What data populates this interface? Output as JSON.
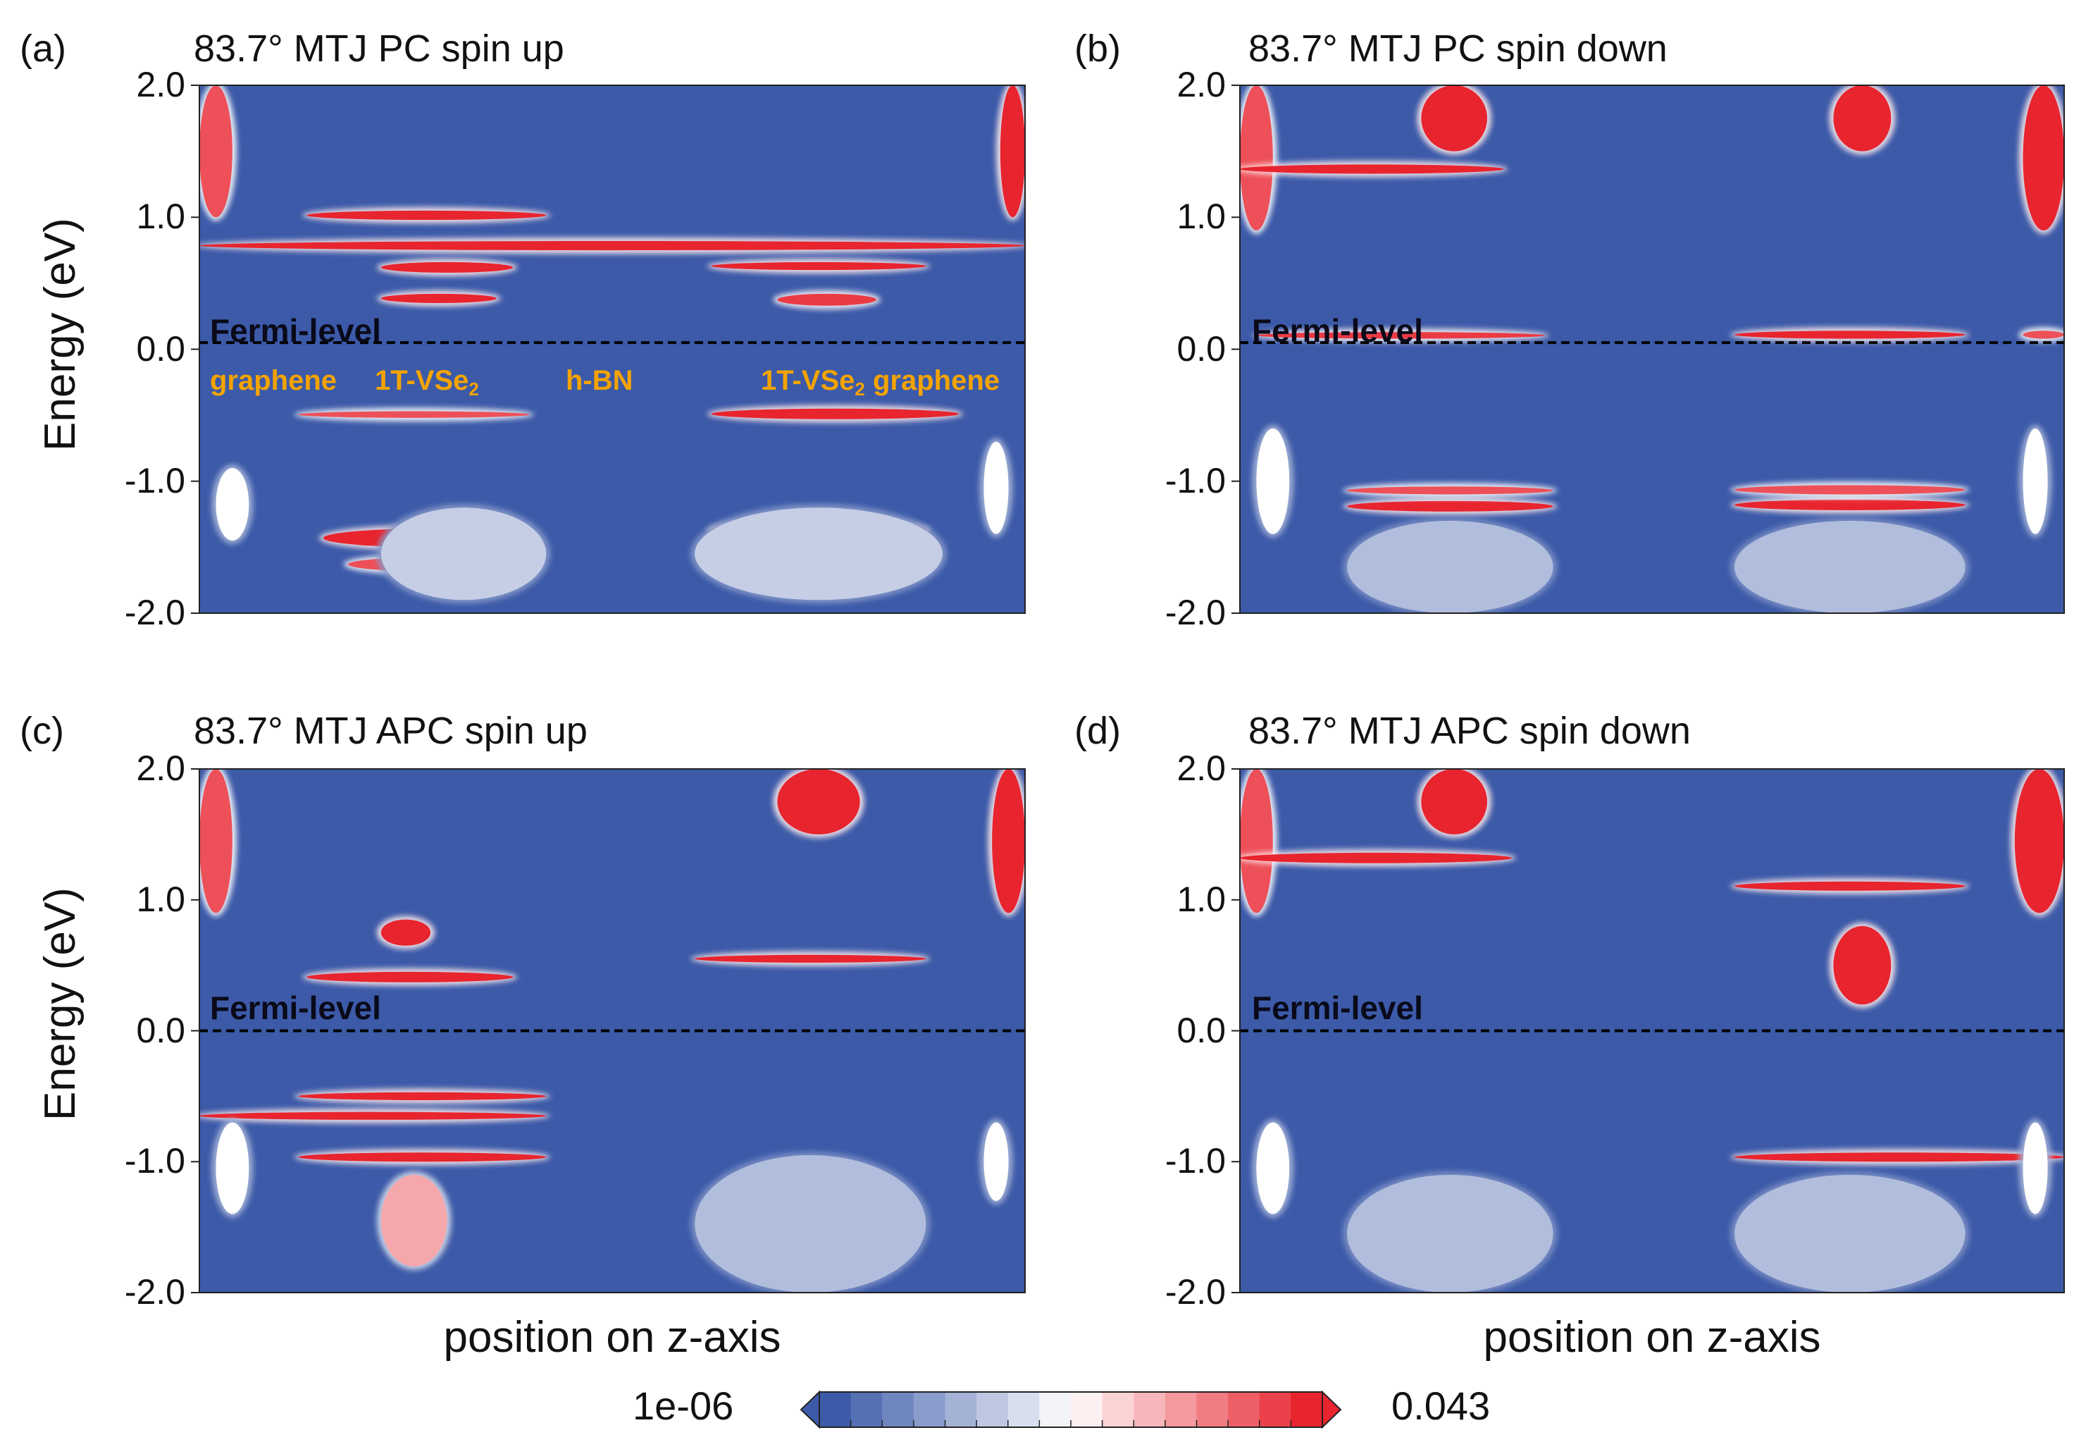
{
  "colors": {
    "background_low": "#3c5aa8",
    "mid": "#ffffff",
    "high": "#e8242e",
    "fermi_line": "#000000",
    "layer_label": "#f5a300"
  },
  "chart_data": [
    {
      "type": "heatmap",
      "panel_letter": "(a)",
      "title": "83.7° MTJ PC spin up",
      "ylabel": "Energy (eV)",
      "xlabel": "",
      "ylim": [
        -2.0,
        2.0
      ],
      "yticks": [
        "2.0",
        "1.0",
        "0.0",
        "-1.0",
        "-2.0"
      ],
      "fermi_level": {
        "label": "Fermi-level",
        "energy": 0.05
      },
      "layer_labels": [
        {
          "text": "graphene",
          "sub": "",
          "tail": "",
          "z": 0.09
        },
        {
          "text": "1T-VSe",
          "sub": "2",
          "tail": "",
          "z": 0.29
        },
        {
          "text": "h-BN",
          "sub": "",
          "tail": "",
          "z": 0.5
        },
        {
          "text": "1T-VSe",
          "sub": "2",
          "tail": " graphene",
          "z": 0.78
        }
      ],
      "features": [
        {
          "z0": 0.0,
          "z1": 0.04,
          "e0": 1.0,
          "e1": 2.0,
          "v": 0.9
        },
        {
          "z0": 0.97,
          "z1": 1.0,
          "e0": 1.0,
          "e1": 2.0,
          "v": 1.0
        },
        {
          "z0": 0.13,
          "z1": 0.42,
          "e0": 0.98,
          "e1": 1.05,
          "v": 1.0
        },
        {
          "z0": 0.0,
          "z1": 1.0,
          "e0": 0.75,
          "e1": 0.82,
          "v": 1.0
        },
        {
          "z0": 0.22,
          "z1": 0.38,
          "e0": 0.58,
          "e1": 0.66,
          "v": 1.0
        },
        {
          "z0": 0.62,
          "z1": 0.88,
          "e0": 0.6,
          "e1": 0.66,
          "v": 1.0
        },
        {
          "z0": 0.22,
          "z1": 0.36,
          "e0": 0.35,
          "e1": 0.42,
          "v": 1.0
        },
        {
          "z0": 0.7,
          "z1": 0.82,
          "e0": 0.33,
          "e1": 0.42,
          "v": 0.95
        },
        {
          "z0": 0.12,
          "z1": 0.4,
          "e0": -0.52,
          "e1": -0.47,
          "v": 0.9
        },
        {
          "z0": 0.62,
          "z1": 0.92,
          "e0": -0.53,
          "e1": -0.45,
          "v": 1.0
        },
        {
          "z0": 0.15,
          "z1": 0.4,
          "e0": -1.5,
          "e1": -1.36,
          "v": 1.0
        },
        {
          "z0": 0.62,
          "z1": 0.88,
          "e0": -1.45,
          "e1": -1.3,
          "v": 1.0
        },
        {
          "z0": 0.18,
          "z1": 0.35,
          "e0": -1.68,
          "e1": -1.58,
          "v": 0.9
        },
        {
          "z0": 0.64,
          "z1": 0.86,
          "e0": -1.7,
          "e1": -1.58,
          "v": 0.9
        },
        {
          "z0": 0.02,
          "z1": 0.06,
          "e0": -1.45,
          "e1": -0.9,
          "v": 0.5
        },
        {
          "z0": 0.95,
          "z1": 0.98,
          "e0": -1.4,
          "e1": -0.7,
          "v": 0.5
        },
        {
          "z0": 0.22,
          "z1": 0.42,
          "e0": -1.9,
          "e1": -1.2,
          "v": 0.35
        },
        {
          "z0": 0.6,
          "z1": 0.9,
          "e0": -1.9,
          "e1": -1.2,
          "v": 0.35
        }
      ]
    },
    {
      "type": "heatmap",
      "panel_letter": "(b)",
      "title": "83.7° MTJ PC spin down",
      "ylabel": "",
      "xlabel": "",
      "ylim": [
        -2.0,
        2.0
      ],
      "yticks": [
        "2.0",
        "1.0",
        "0.0",
        "-1.0",
        "-2.0"
      ],
      "fermi_level": {
        "label": "Fermi-level",
        "energy": 0.05
      },
      "layer_labels": [],
      "features": [
        {
          "z0": 0.0,
          "z1": 0.04,
          "e0": 0.9,
          "e1": 2.0,
          "v": 0.9
        },
        {
          "z0": 0.95,
          "z1": 1.0,
          "e0": 0.9,
          "e1": 2.0,
          "v": 1.0
        },
        {
          "z0": 0.22,
          "z1": 0.3,
          "e0": 1.5,
          "e1": 2.0,
          "v": 1.0
        },
        {
          "z0": 0.72,
          "z1": 0.79,
          "e0": 1.5,
          "e1": 2.0,
          "v": 1.0
        },
        {
          "z0": 0.0,
          "z1": 0.32,
          "e0": 1.33,
          "e1": 1.4,
          "v": 1.0
        },
        {
          "z0": 0.02,
          "z1": 0.37,
          "e0": 0.08,
          "e1": 0.13,
          "v": 0.95
        },
        {
          "z0": 0.6,
          "z1": 0.88,
          "e0": 0.08,
          "e1": 0.14,
          "v": 1.0
        },
        {
          "z0": 0.95,
          "z1": 1.0,
          "e0": 0.08,
          "e1": 0.14,
          "v": 0.9
        },
        {
          "z0": 0.13,
          "z1": 0.38,
          "e0": -1.23,
          "e1": -1.15,
          "v": 1.0
        },
        {
          "z0": 0.6,
          "z1": 0.88,
          "e0": -1.22,
          "e1": -1.14,
          "v": 1.0
        },
        {
          "z0": 0.13,
          "z1": 0.38,
          "e0": -1.1,
          "e1": -1.04,
          "v": 0.9
        },
        {
          "z0": 0.6,
          "z1": 0.88,
          "e0": -1.1,
          "e1": -1.03,
          "v": 0.9
        },
        {
          "z0": 0.02,
          "z1": 0.06,
          "e0": -1.4,
          "e1": -0.6,
          "v": 0.5
        },
        {
          "z0": 0.95,
          "z1": 0.98,
          "e0": -1.4,
          "e1": -0.6,
          "v": 0.5
        },
        {
          "z0": 0.13,
          "z1": 0.38,
          "e0": -2.0,
          "e1": -1.3,
          "v": 0.3
        },
        {
          "z0": 0.6,
          "z1": 0.88,
          "e0": -2.0,
          "e1": -1.3,
          "v": 0.3
        }
      ]
    },
    {
      "type": "heatmap",
      "panel_letter": "(c)",
      "title": "83.7° MTJ APC spin up",
      "ylabel": "Energy (eV)",
      "xlabel": "position on z-axis",
      "ylim": [
        -2.0,
        2.0
      ],
      "yticks": [
        "2.0",
        "1.0",
        "0.0",
        "-1.0",
        "-2.0"
      ],
      "fermi_level": {
        "label": "Fermi-level",
        "energy": 0.0
      },
      "layer_labels": [],
      "features": [
        {
          "z0": 0.0,
          "z1": 0.04,
          "e0": 0.9,
          "e1": 2.0,
          "v": 0.9
        },
        {
          "z0": 0.96,
          "z1": 1.0,
          "e0": 0.9,
          "e1": 2.0,
          "v": 1.0
        },
        {
          "z0": 0.7,
          "z1": 0.8,
          "e0": 1.5,
          "e1": 2.0,
          "v": 1.0
        },
        {
          "z0": 0.22,
          "z1": 0.28,
          "e0": 0.65,
          "e1": 0.85,
          "v": 1.0
        },
        {
          "z0": 0.13,
          "z1": 0.38,
          "e0": 0.37,
          "e1": 0.45,
          "v": 1.0
        },
        {
          "z0": 0.6,
          "z1": 0.88,
          "e0": 0.52,
          "e1": 0.58,
          "v": 1.0
        },
        {
          "z0": 0.12,
          "z1": 0.42,
          "e0": -0.53,
          "e1": -0.47,
          "v": 1.0
        },
        {
          "z0": 0.0,
          "z1": 0.42,
          "e0": -0.68,
          "e1": -0.62,
          "v": 1.0
        },
        {
          "z0": 0.12,
          "z1": 0.42,
          "e0": -1.0,
          "e1": -0.93,
          "v": 1.0
        },
        {
          "z0": 0.22,
          "z1": 0.3,
          "e0": -1.8,
          "e1": -1.1,
          "v": 0.7
        },
        {
          "z0": 0.02,
          "z1": 0.06,
          "e0": -1.4,
          "e1": -0.7,
          "v": 0.5
        },
        {
          "z0": 0.95,
          "z1": 0.98,
          "e0": -1.3,
          "e1": -0.7,
          "v": 0.5
        },
        {
          "z0": 0.6,
          "z1": 0.88,
          "e0": -2.0,
          "e1": -0.95,
          "v": 0.3
        }
      ]
    },
    {
      "type": "heatmap",
      "panel_letter": "(d)",
      "title": "83.7° MTJ APC spin down",
      "ylabel": "",
      "xlabel": "position on z-axis",
      "ylim": [
        -2.0,
        2.0
      ],
      "yticks": [
        "2.0",
        "1.0",
        "0.0",
        "-1.0",
        "-2.0"
      ],
      "fermi_level": {
        "label": "Fermi-level",
        "energy": 0.0
      },
      "layer_labels": [],
      "features": [
        {
          "z0": 0.0,
          "z1": 0.04,
          "e0": 0.9,
          "e1": 2.0,
          "v": 0.9
        },
        {
          "z0": 0.94,
          "z1": 1.0,
          "e0": 0.9,
          "e1": 2.0,
          "v": 1.0
        },
        {
          "z0": 0.22,
          "z1": 0.3,
          "e0": 1.5,
          "e1": 2.0,
          "v": 1.0
        },
        {
          "z0": 0.0,
          "z1": 0.33,
          "e0": 1.28,
          "e1": 1.36,
          "v": 1.0
        },
        {
          "z0": 0.6,
          "z1": 0.88,
          "e0": 1.07,
          "e1": 1.14,
          "v": 1.0
        },
        {
          "z0": 0.72,
          "z1": 0.79,
          "e0": 0.2,
          "e1": 0.8,
          "v": 1.0
        },
        {
          "z0": 0.6,
          "z1": 1.0,
          "e0": -1.0,
          "e1": -0.93,
          "v": 1.0
        },
        {
          "z0": 0.66,
          "z1": 0.82,
          "e0": -1.55,
          "e1": -1.45,
          "v": 1.0
        },
        {
          "z0": 0.02,
          "z1": 0.06,
          "e0": -1.4,
          "e1": -0.7,
          "v": 0.5
        },
        {
          "z0": 0.95,
          "z1": 0.98,
          "e0": -1.4,
          "e1": -0.7,
          "v": 0.5
        },
        {
          "z0": 0.13,
          "z1": 0.38,
          "e0": -2.0,
          "e1": -1.1,
          "v": 0.3
        },
        {
          "z0": 0.6,
          "z1": 0.88,
          "e0": -2.0,
          "e1": -1.1,
          "v": 0.3
        }
      ]
    }
  ],
  "colorbar": {
    "min_label": "1e-06",
    "max_label": "0.043",
    "steps": 16
  }
}
